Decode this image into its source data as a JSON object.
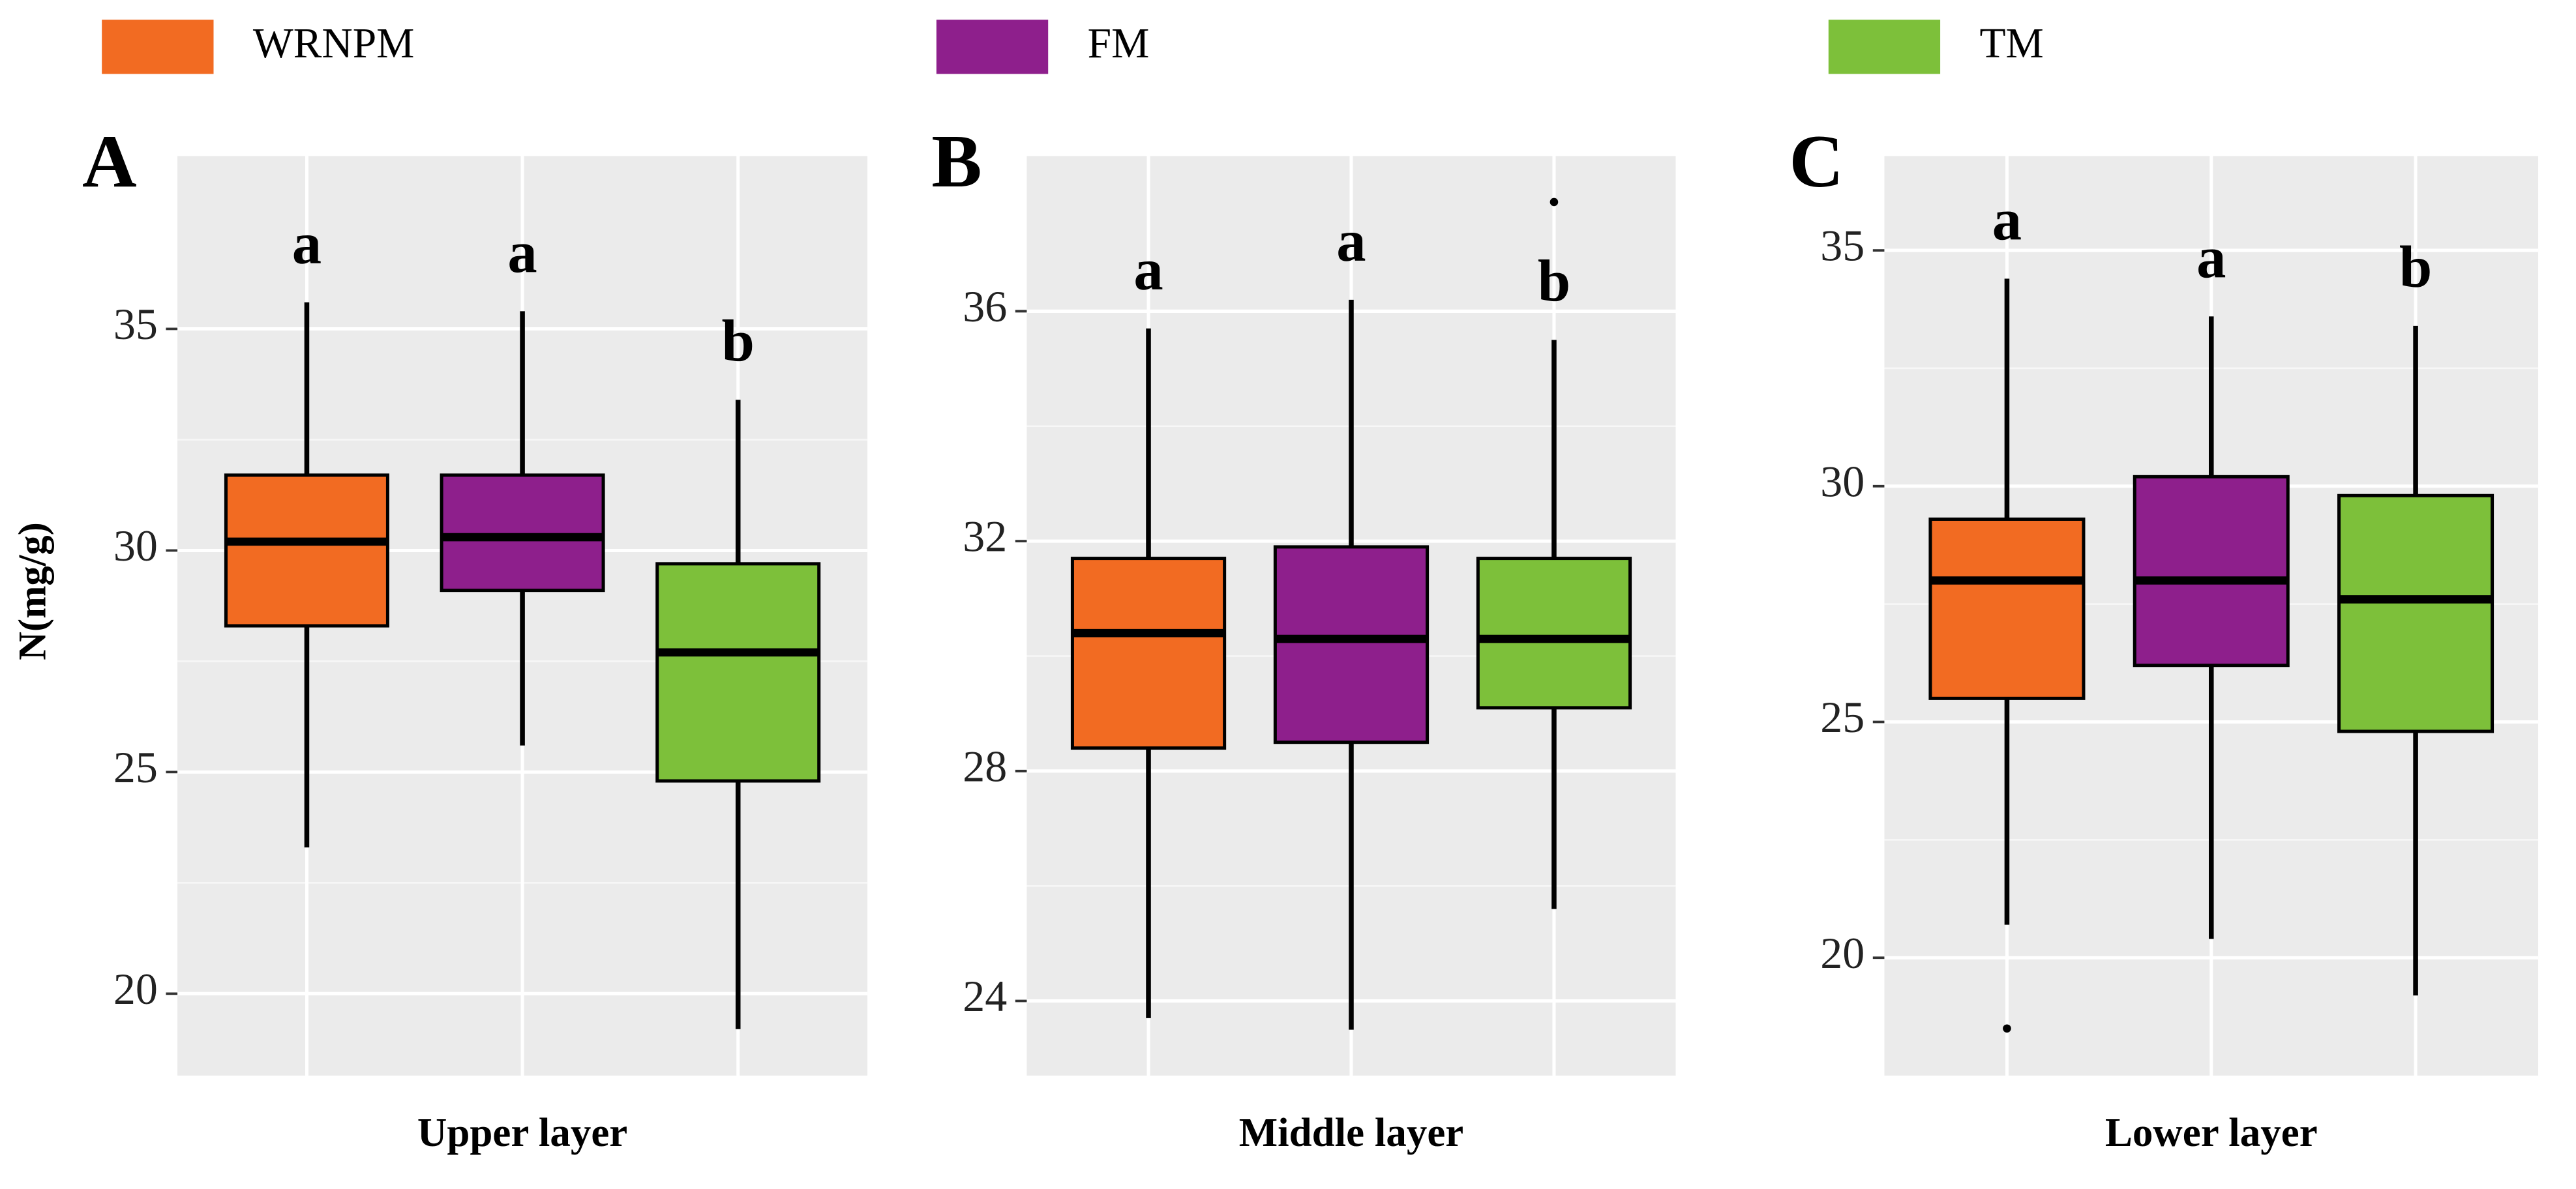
{
  "legend": [
    {
      "name": "WRNPM",
      "color": "#f26b22"
    },
    {
      "name": "FM",
      "color": "#8e1f8c"
    },
    {
      "name": "TM",
      "color": "#7dc03a"
    }
  ],
  "chart_data": [
    {
      "type": "box",
      "panel": "A",
      "xlabel": "Upper layer",
      "ylabel": "N(mg/g)",
      "grid": true,
      "ylim": [
        18.15,
        38.9
      ],
      "yticks": [
        20,
        25,
        30,
        35
      ],
      "boxes": [
        {
          "whislo": 23.3,
          "q1": 28.3,
          "med": 30.2,
          "q3": 31.7,
          "whishi": 35.6,
          "letter": "a",
          "outliers": []
        },
        {
          "whislo": 25.6,
          "q1": 29.1,
          "med": 30.3,
          "q3": 31.7,
          "whishi": 35.4,
          "letter": "a",
          "outliers": []
        },
        {
          "whislo": 19.2,
          "q1": 24.8,
          "med": 27.7,
          "q3": 29.7,
          "whishi": 33.4,
          "letter": "b",
          "outliers": []
        }
      ]
    },
    {
      "type": "box",
      "panel": "B",
      "xlabel": "Middle layer",
      "grid": true,
      "ylim": [
        22.7,
        38.7
      ],
      "yticks": [
        24,
        28,
        32,
        36
      ],
      "boxes": [
        {
          "whislo": 23.7,
          "q1": 28.4,
          "med": 30.4,
          "q3": 31.7,
          "whishi": 35.7,
          "letter": "a",
          "outliers": []
        },
        {
          "whislo": 23.5,
          "q1": 28.5,
          "med": 30.3,
          "q3": 31.9,
          "whishi": 36.2,
          "letter": "a",
          "outliers": []
        },
        {
          "whislo": 25.6,
          "q1": 29.1,
          "med": 30.3,
          "q3": 31.7,
          "whishi": 35.5,
          "letter": "b",
          "outliers": [
            37.9
          ]
        }
      ]
    },
    {
      "type": "box",
      "panel": "C",
      "xlabel": "Lower layer",
      "grid": true,
      "ylim": [
        17.5,
        37.0
      ],
      "yticks": [
        20,
        25,
        30,
        35
      ],
      "boxes": [
        {
          "whislo": 20.7,
          "q1": 25.5,
          "med": 28.0,
          "q3": 29.3,
          "whishi": 34.4,
          "letter": "a",
          "outliers": [
            18.5
          ]
        },
        {
          "whislo": 20.4,
          "q1": 26.2,
          "med": 28.0,
          "q3": 30.2,
          "whishi": 33.6,
          "letter": "a",
          "outliers": []
        },
        {
          "whislo": 19.2,
          "q1": 24.8,
          "med": 27.6,
          "q3": 29.8,
          "whishi": 33.4,
          "letter": "b",
          "outliers": []
        }
      ]
    }
  ]
}
